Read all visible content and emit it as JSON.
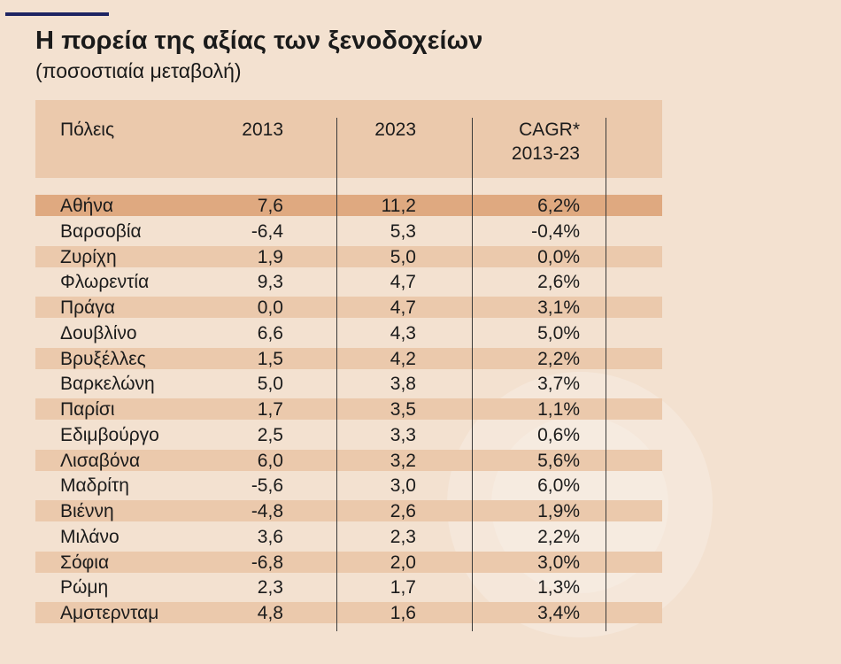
{
  "title": "Η πορεία της αξίας των ξενοδοχείων",
  "subtitle": "(ποσοστιαία μεταβολή)",
  "colors": {
    "background": "#f3e1d0",
    "header": "#ebc9ac",
    "row_band": "#ebc9ac",
    "highlight_row": "#dfa980",
    "accent_rule": "#1e2462"
  },
  "chart_data": {
    "type": "table",
    "title": "Η πορεία της αξίας των ξενοδοχείων",
    "subtitle": "(ποσοστιαία μεταβολή)",
    "columns": [
      "Πόλεις",
      "2013",
      "2023",
      "CAGR* 2013-23"
    ],
    "header": {
      "city": "Πόλεις",
      "y2013": "2013",
      "y2023": "2023",
      "cagr_line1": "CAGR*",
      "cagr_line2": "2013-23"
    },
    "highlighted_row": 0,
    "rows": [
      {
        "city": "Αθήνα",
        "y2013": "7,6",
        "y2023": "11,2",
        "cagr": "6,2%"
      },
      {
        "city": "Βαρσοβία",
        "y2013": "-6,4",
        "y2023": "5,3",
        "cagr": "-0,4%"
      },
      {
        "city": "Ζυρίχη",
        "y2013": "1,9",
        "y2023": "5,0",
        "cagr": "0,0%"
      },
      {
        "city": "Φλωρεντία",
        "y2013": "9,3",
        "y2023": "4,7",
        "cagr": "2,6%"
      },
      {
        "city": "Πράγα",
        "y2013": "0,0",
        "y2023": "4,7",
        "cagr": "3,1%"
      },
      {
        "city": "Δουβλίνο",
        "y2013": "6,6",
        "y2023": "4,3",
        "cagr": "5,0%"
      },
      {
        "city": "Βρυξέλλες",
        "y2013": "1,5",
        "y2023": "4,2",
        "cagr": "2,2%"
      },
      {
        "city": "Βαρκελώνη",
        "y2013": "5,0",
        "y2023": "3,8",
        "cagr": "3,7%"
      },
      {
        "city": "Παρίσι",
        "y2013": "1,7",
        "y2023": "3,5",
        "cagr": "1,1%"
      },
      {
        "city": "Εδιμβούργο",
        "y2013": "2,5",
        "y2023": "3,3",
        "cagr": "0,6%"
      },
      {
        "city": "Λισαβόνα",
        "y2013": "6,0",
        "y2023": "3,2",
        "cagr": "5,6%"
      },
      {
        "city": "Μαδρίτη",
        "y2013": "-5,6",
        "y2023": "3,0",
        "cagr": "6,0%"
      },
      {
        "city": "Βιέννη",
        "y2013": "-4,8",
        "y2023": "2,6",
        "cagr": "1,9%"
      },
      {
        "city": "Μιλάνο",
        "y2013": "3,6",
        "y2023": "2,3",
        "cagr": "2,2%"
      },
      {
        "city": "Σόφια",
        "y2013": "-6,8",
        "y2023": "2,0",
        "cagr": "3,0%"
      },
      {
        "city": "Ρώμη",
        "y2013": "2,3",
        "y2023": "1,7",
        "cagr": "1,3%"
      },
      {
        "city": "Αμστερνταμ",
        "y2013": "4,8",
        "y2023": "1,6",
        "cagr": "3,4%"
      }
    ]
  }
}
